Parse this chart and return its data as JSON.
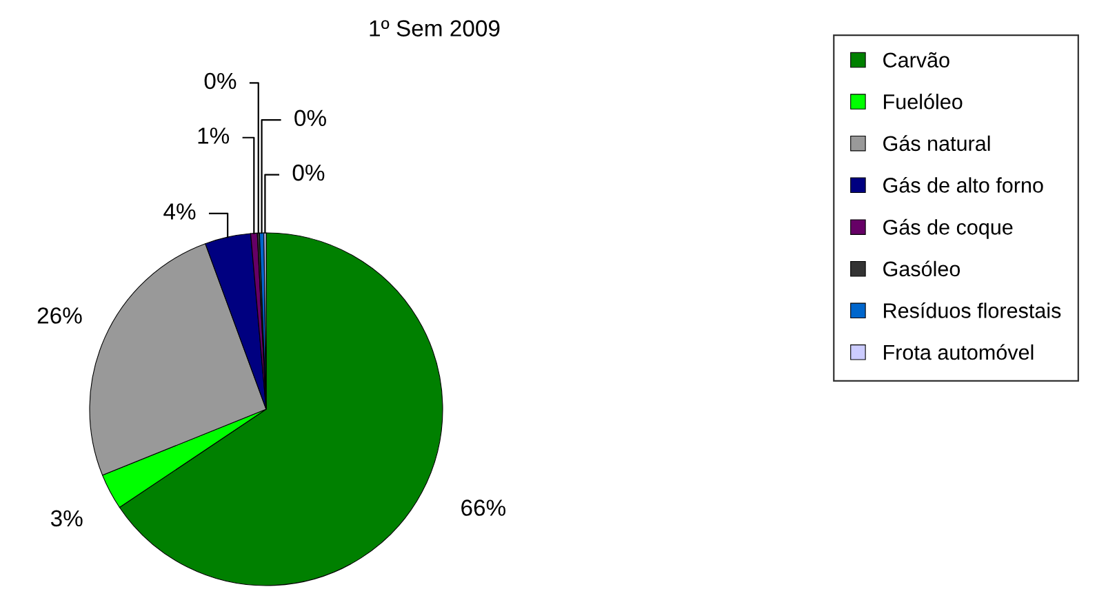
{
  "chart_data": {
    "type": "pie",
    "title": "1º Sem 2009",
    "categories": [
      "Carvão",
      "Fuelóleo",
      "Gás natural",
      "Gás de alto forno",
      "Gás de coque",
      "Gasóleo",
      "Resíduos florestais",
      "Frota automóvel"
    ],
    "values": [
      65.6,
      3.3,
      25.5,
      4.2,
      0.6,
      0.2,
      0.4,
      0.2
    ],
    "value_labels": [
      "66%",
      "3%",
      "26%",
      "4%",
      "1%",
      "0%",
      "0%",
      "0%"
    ],
    "colors": [
      "#008000",
      "#00ff00",
      "#999999",
      "#000080",
      "#660066",
      "#333333",
      "#0066cc",
      "#ccccff"
    ],
    "legend": "right"
  }
}
